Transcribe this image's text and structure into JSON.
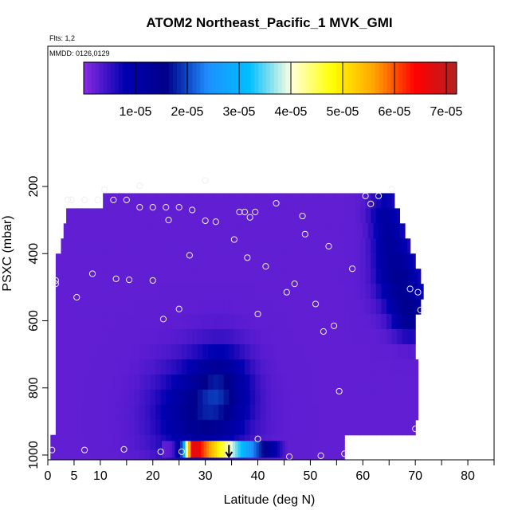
{
  "chart_data": {
    "type": "heatmap",
    "title": "ATOM2 Northeast_Pacific_1 MVK_GMI",
    "annotations": {
      "flights": "Flts: 1,2",
      "dates": "MMDD: 0126,0129"
    },
    "xlabel": "Latitude (deg N)",
    "ylabel": "PSXC (mbar)",
    "xlim": [
      0,
      85
    ],
    "ylim": [
      1000,
      50
    ],
    "y_reversed": true,
    "grid": false,
    "x_ticks": [
      0,
      5,
      10,
      20,
      30,
      40,
      50,
      60,
      70,
      80
    ],
    "x_minor_ticks": [
      15,
      25,
      35,
      45,
      55,
      65,
      75,
      85
    ],
    "y_ticks": [
      200,
      400,
      600,
      800,
      1000
    ],
    "colorbar": {
      "placement": "top",
      "min": 0,
      "max": 7.2e-05,
      "tick_values": [
        1e-05,
        2e-05,
        3e-05,
        4e-05,
        5e-05,
        6e-05,
        7e-05
      ],
      "tick_labels": [
        "1e-05",
        "2e-05",
        "3e-05",
        "4e-05",
        "5e-05",
        "6e-05",
        "7e-05"
      ],
      "colors": [
        "#8a2be2",
        "#0000b0",
        "#00008b",
        "#1e90ff",
        "#00bfff",
        "#ffffe0",
        "#ffff00",
        "#ffa500",
        "#ff0000",
        "#b22222"
      ]
    },
    "field": {
      "lat_bounds": [
        [
          10.5,
          66
        ],
        [
          3.5,
          67
        ],
        [
          3,
          68
        ],
        [
          2.5,
          69
        ],
        [
          1.5,
          70
        ],
        [
          1.5,
          71
        ],
        [
          1.5,
          71.5
        ],
        [
          1.5,
          71
        ],
        [
          1.5,
          70
        ],
        [
          1.5,
          70
        ],
        [
          1.5,
          70
        ],
        [
          1.5,
          70.5
        ],
        [
          1.5,
          70.5
        ],
        [
          1.5,
          70.5
        ],
        [
          1.5,
          70.5
        ],
        [
          1.5,
          70
        ],
        [
          0.5,
          56.5
        ],
        [
          0.5,
          56.5
        ]
      ],
      "blobs": [
        {
          "lat": 29,
          "p": 880,
          "dlat": 8,
          "dp": 140,
          "value": 1.2e-05
        },
        {
          "lat": 33,
          "p": 790,
          "dlat": 5,
          "dp": 110,
          "value": 9e-06
        },
        {
          "lat": 67,
          "p": 480,
          "dlat": 4,
          "dp": 90,
          "value": 1.1e-05
        },
        {
          "lat": 65,
          "p": 360,
          "dlat": 3,
          "dp": 90,
          "value": 8e-06
        },
        {
          "lat": 69,
          "p": 585,
          "dlat": 3,
          "dp": 60,
          "value": 1.1e-05
        },
        {
          "lat": 64,
          "p": 270,
          "dlat": 3,
          "dp": 60,
          "value": 5e-06
        }
      ],
      "hotspot": {
        "p": 985,
        "lat_from": 21.7,
        "lat_to": 45.6,
        "peak_lat": 28,
        "peak_value": 6.8e-05,
        "base_value": 2.5e-06
      }
    },
    "observations": [
      [
        10.8,
        210
      ],
      [
        3.8,
        240
      ],
      [
        4.5,
        240
      ],
      [
        7,
        240
      ],
      [
        9.5,
        240
      ],
      [
        12.5,
        240
      ],
      [
        15,
        240
      ],
      [
        17.5,
        198
      ],
      [
        17.5,
        262
      ],
      [
        20,
        262
      ],
      [
        22.5,
        262
      ],
      [
        23,
        300
      ],
      [
        25,
        262
      ],
      [
        27.5,
        270
      ],
      [
        30,
        182
      ],
      [
        30,
        302
      ],
      [
        32,
        305
      ],
      [
        35.5,
        358
      ],
      [
        36.5,
        276
      ],
      [
        37.5,
        276
      ],
      [
        38.5,
        292
      ],
      [
        39.5,
        276
      ],
      [
        41.5,
        438
      ],
      [
        43.5,
        250
      ],
      [
        48.5,
        288
      ],
      [
        49,
        342
      ],
      [
        53.5,
        378
      ],
      [
        60.5,
        228
      ],
      [
        61.5,
        252
      ],
      [
        63,
        228
      ],
      [
        65.5,
        208
      ],
      [
        38,
        412
      ],
      [
        27,
        405
      ],
      [
        47,
        490
      ],
      [
        45.5,
        515
      ],
      [
        51,
        550
      ],
      [
        52.5,
        632
      ],
      [
        54.5,
        615
      ],
      [
        58,
        445
      ],
      [
        69,
        505
      ],
      [
        70.5,
        515
      ],
      [
        71,
        568
      ],
      [
        40,
        580
      ],
      [
        25,
        565
      ],
      [
        22,
        595
      ],
      [
        1.5,
        480
      ],
      [
        1.5,
        490
      ],
      [
        5.5,
        530
      ],
      [
        8.5,
        460
      ],
      [
        13,
        475
      ],
      [
        15.5,
        478
      ],
      [
        20,
        480
      ],
      [
        55.5,
        810
      ],
      [
        70,
        922
      ],
      [
        40,
        952
      ],
      [
        0.8,
        985
      ],
      [
        7,
        985
      ],
      [
        14.5,
        983
      ],
      [
        21.5,
        990
      ],
      [
        25.5,
        990
      ],
      [
        46,
        1005
      ],
      [
        52,
        1002
      ],
      [
        56.5,
        996
      ]
    ],
    "marker": {
      "lat": 34.5,
      "p_from": 970,
      "p_to": 1005
    }
  }
}
